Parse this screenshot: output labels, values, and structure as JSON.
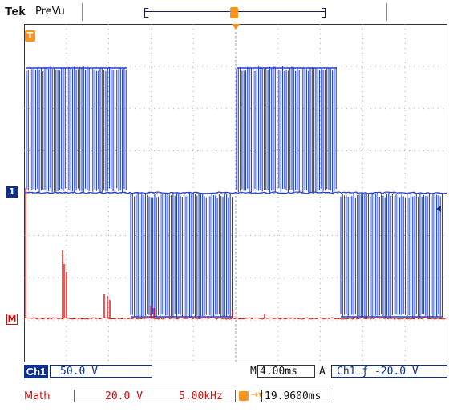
{
  "header": {
    "brand": "Tek",
    "mode": "PreVu"
  },
  "markers": {
    "trigger": "T",
    "ch1": "1",
    "math": "M"
  },
  "channel1": {
    "tag": "Ch1",
    "scale": "50.0 V",
    "color": "#1f3fd6"
  },
  "timebase": {
    "prefix": "M",
    "value": "4.00ms"
  },
  "trigger": {
    "prefix": "A",
    "source": "Ch1",
    "slope_symbol": "ƒ",
    "level": "-20.0 V"
  },
  "math": {
    "label": "Math",
    "scale": "20.0 V",
    "freq": "5.00kHz",
    "color": "#e01010"
  },
  "trigger_position": {
    "value": "19.9600ms"
  },
  "colors": {
    "trigger_orange": "#f7941d",
    "grid": "#9a9a9a",
    "ch1_dark": "#0b2f8c"
  }
}
